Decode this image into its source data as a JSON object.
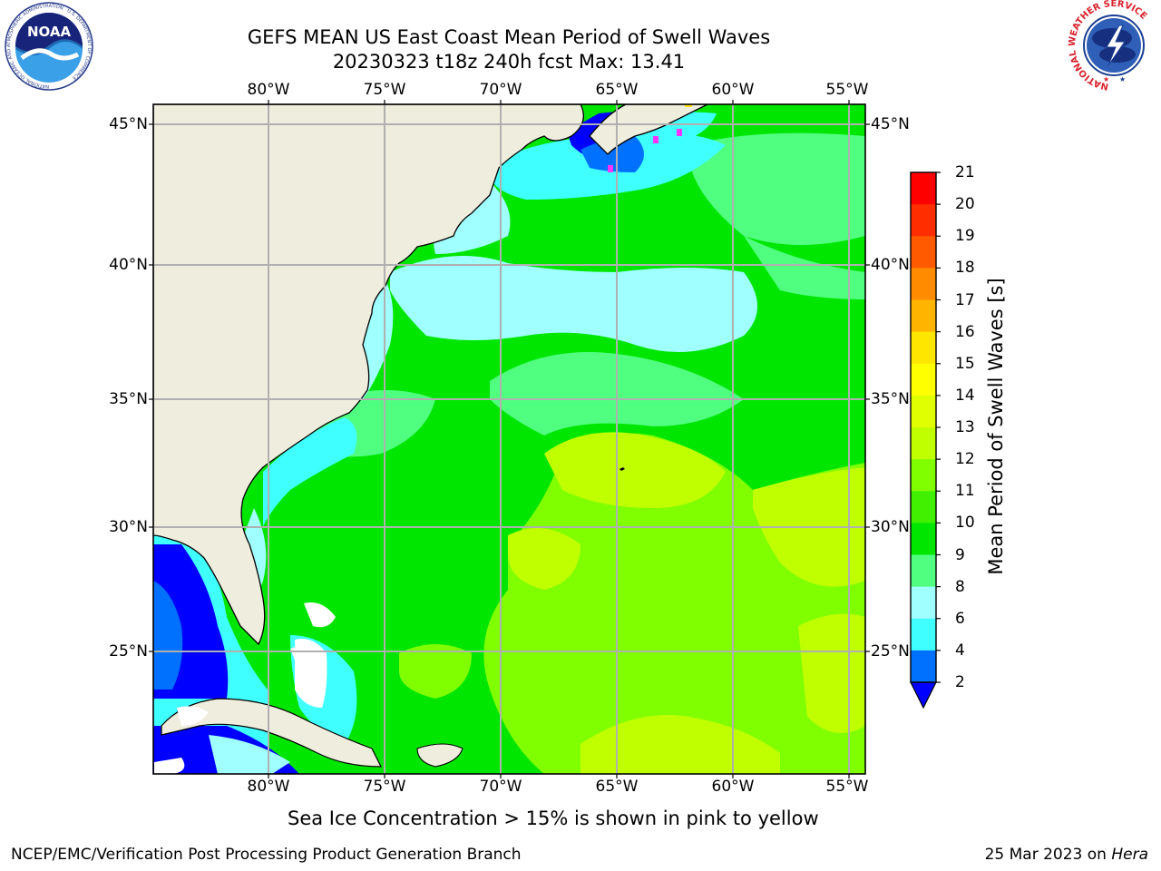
{
  "title": {
    "line1": "GEFS MEAN US East Coast Mean Period of Swell Waves",
    "line2": "20230323 t18z 240h fcst   Max: 13.41"
  },
  "map": {
    "lon_labels": [
      "80°W",
      "75°W",
      "70°W",
      "65°W",
      "60°W",
      "55°W"
    ],
    "lat_labels": [
      "45°N",
      "40°N",
      "35°N",
      "30°N",
      "25°N"
    ],
    "colors": {
      "land": "#efeddd",
      "grid": "#b0b0b0",
      "coast": "#000000",
      "sea_ice": "#ff33ff"
    }
  },
  "colorbar": {
    "label": "Mean Period of Swell Waves [s]",
    "ticks": [
      "2",
      "4",
      "6",
      "8",
      "9",
      "10",
      "11",
      "12",
      "13",
      "14",
      "15",
      "16",
      "17",
      "18",
      "19",
      "20",
      "21"
    ],
    "colors": [
      "#0070ff",
      "#00e6ff",
      "#40ffff",
      "#a0ffff",
      "#50ff80",
      "#00e600",
      "#40f000",
      "#80ff00",
      "#c0ff00",
      "#e0ff00",
      "#ffff00",
      "#ffe600",
      "#ffb400",
      "#ff8c00",
      "#ff5a00",
      "#ff2d00",
      "#ff0000"
    ],
    "extend_color": "#0000ff"
  },
  "note": "Sea Ice Concentration > 15% is shown in pink to yellow",
  "footer": {
    "left": "NCEP/EMC/Verification Post Processing Product Generation Branch",
    "date": "25 Mar 2023 on",
    "machine": "Hera"
  },
  "logos": {
    "noaa_text": "NOAA",
    "noaa_ring": "NATIONAL OCEANIC AND ATMOSPHERIC ADMINISTRATION · U.S. DEPARTMENT OF COMMERCE",
    "nws_ring": "NATIONAL WEATHER SERVICE"
  }
}
